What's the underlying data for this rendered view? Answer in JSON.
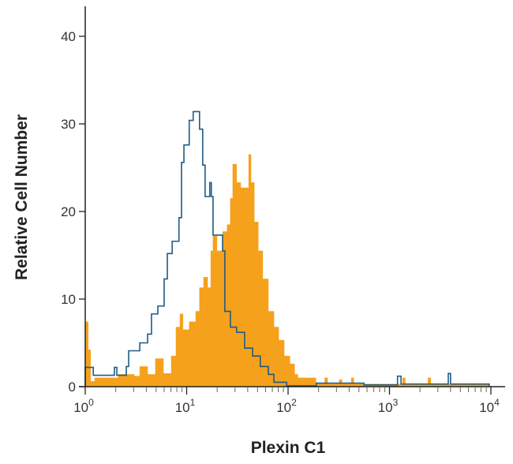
{
  "chart_data": {
    "type": "histogram-step",
    "title": "",
    "xlabel": "Plexin C1",
    "ylabel": "Relative Cell Number",
    "xscale": "log",
    "xlim": [
      1,
      10000
    ],
    "ylim": [
      0,
      45
    ],
    "x_ticks": [
      {
        "base": "10",
        "exp": "0",
        "value": 1
      },
      {
        "base": "10",
        "exp": "1",
        "value": 10
      },
      {
        "base": "10",
        "exp": "2",
        "value": 100
      },
      {
        "base": "10",
        "exp": "3",
        "value": 1000
      },
      {
        "base": "10",
        "exp": "4",
        "value": 10000
      }
    ],
    "y_ticks": [
      "0",
      "10",
      "20",
      "30",
      "40"
    ],
    "grid": false,
    "series": [
      {
        "style": "filled",
        "color": "#f5a11c",
        "points": [
          [
            1.0,
            7.4
          ],
          [
            1.07,
            4.2
          ],
          [
            1.13,
            0.6
          ],
          [
            1.24,
            1.0
          ],
          [
            2.12,
            1.4
          ],
          [
            3.04,
            1.2
          ],
          [
            3.45,
            2.3
          ],
          [
            4.12,
            1.4
          ],
          [
            4.92,
            3.2
          ],
          [
            5.9,
            1.5
          ],
          [
            7.05,
            3.5
          ],
          [
            7.85,
            6.8
          ],
          [
            8.6,
            8.3
          ],
          [
            9.2,
            6.5
          ],
          [
            10.6,
            7.4
          ],
          [
            12.3,
            8.6
          ],
          [
            13.4,
            11.3
          ],
          [
            14.7,
            12.5
          ],
          [
            16.1,
            11.3
          ],
          [
            17.3,
            15.5
          ],
          [
            18.2,
            17.2
          ],
          [
            19.9,
            15.5
          ],
          [
            22.6,
            17.7
          ],
          [
            25.1,
            18.5
          ],
          [
            27.0,
            21.5
          ],
          [
            28.5,
            25.4
          ],
          [
            31.1,
            23.3
          ],
          [
            34.1,
            22.7
          ],
          [
            40.9,
            26.5
          ],
          [
            43.1,
            23.3
          ],
          [
            46.4,
            18.8
          ],
          [
            50.8,
            15.5
          ],
          [
            56.3,
            12.3
          ],
          [
            63.9,
            8.6
          ],
          [
            72.5,
            6.8
          ],
          [
            80.9,
            5.3
          ],
          [
            91.5,
            3.5
          ],
          [
            104,
            2.6
          ],
          [
            116,
            1.4
          ],
          [
            125,
            1.0
          ],
          [
            188,
            0.3
          ],
          [
            230,
            1.0
          ],
          [
            245,
            0.3
          ],
          [
            320,
            0.8
          ],
          [
            340,
            0.3
          ],
          [
            420,
            1.0
          ],
          [
            445,
            0.3
          ],
          [
            1350,
            1.0
          ],
          [
            1430,
            0.3
          ],
          [
            2400,
            1.0
          ],
          [
            2550,
            0.3
          ],
          [
            9600,
            0
          ]
        ]
      },
      {
        "style": "outline",
        "color": "#1f5b86",
        "points": [
          [
            1.0,
            2.2
          ],
          [
            1.2,
            1.3
          ],
          [
            1.94,
            2.2
          ],
          [
            2.05,
            1.3
          ],
          [
            2.54,
            2.3
          ],
          [
            2.68,
            4.1
          ],
          [
            3.45,
            5.0
          ],
          [
            4.12,
            6.0
          ],
          [
            4.5,
            8.3
          ],
          [
            5.2,
            9.2
          ],
          [
            6.0,
            12.3
          ],
          [
            6.45,
            15.2
          ],
          [
            7.2,
            16.6
          ],
          [
            8.4,
            19.3
          ],
          [
            8.9,
            25.6
          ],
          [
            9.4,
            27.6
          ],
          [
            10.6,
            30.4
          ],
          [
            11.6,
            31.4
          ],
          [
            13.4,
            29.4
          ],
          [
            14.4,
            25.3
          ],
          [
            15.2,
            21.7
          ],
          [
            16.9,
            23.3
          ],
          [
            17.5,
            21.7
          ],
          [
            18.2,
            17.3
          ],
          [
            22.6,
            15.5
          ],
          [
            23.8,
            8.6
          ],
          [
            27.0,
            6.8
          ],
          [
            31.1,
            6.2
          ],
          [
            37.3,
            4.4
          ],
          [
            44.8,
            3.5
          ],
          [
            53.2,
            2.3
          ],
          [
            63.9,
            1.4
          ],
          [
            72.5,
            0.5
          ],
          [
            96.7,
            0.1
          ],
          [
            190,
            0.4
          ],
          [
            560,
            0.2
          ],
          [
            1200,
            1.2
          ],
          [
            1300,
            0.3
          ],
          [
            3800,
            1.5
          ],
          [
            4000,
            0.3
          ],
          [
            9600,
            0
          ]
        ]
      }
    ]
  }
}
